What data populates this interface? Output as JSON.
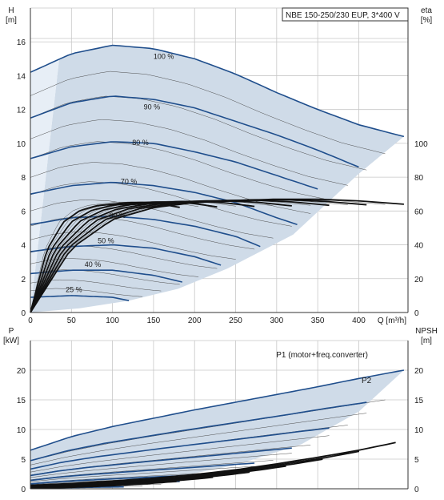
{
  "chart_data": [
    {
      "type": "line",
      "title": "NBE 150-250/230 EUP, 3*400 V",
      "xlabel": "Q [m³/h]",
      "ylabel_left": "H\n[m]",
      "ylabel_right": "eta\n[%]",
      "xlim": [
        0,
        460
      ],
      "ylim": [
        0,
        18
      ],
      "y2lim": [
        0,
        180
      ],
      "xticks": [
        "0",
        "50",
        "100",
        "150",
        "200",
        "250",
        "300",
        "350",
        "400"
      ],
      "yticks": [
        "0",
        "2",
        "4",
        "6",
        "8",
        "10",
        "12",
        "14",
        "16"
      ],
      "y2ticks": [
        "0",
        "20",
        "40",
        "60",
        "80",
        "100"
      ],
      "grid": true,
      "speed_labels": [
        "100 %",
        "90 %",
        "80 %",
        "70 %",
        "60 %",
        "50 %",
        "40 %",
        "25 %"
      ],
      "series": [
        {
          "name": "100 %",
          "speed": 1.0,
          "x": [
            0,
            50,
            100,
            150,
            200,
            250,
            300,
            350,
            400,
            455
          ],
          "values": [
            14.2,
            15.3,
            15.8,
            15.6,
            15.0,
            14.1,
            13.0,
            12.0,
            11.1,
            10.4
          ]
        },
        {
          "name": "90 %",
          "speed": 0.9,
          "x": [
            0,
            50,
            100,
            150,
            200,
            250,
            300,
            350,
            400
          ],
          "values": [
            11.5,
            12.4,
            12.8,
            12.6,
            12.1,
            11.3,
            10.5,
            9.6,
            8.6
          ]
        },
        {
          "name": "80 %",
          "speed": 0.8,
          "x": [
            0,
            50,
            100,
            150,
            200,
            250,
            300,
            350
          ],
          "values": [
            9.1,
            9.8,
            10.1,
            10.0,
            9.5,
            8.9,
            8.1,
            7.3
          ]
        },
        {
          "name": "70 %",
          "speed": 0.7,
          "x": [
            0,
            50,
            100,
            150,
            200,
            250,
            300,
            325
          ],
          "values": [
            7.0,
            7.5,
            7.7,
            7.5,
            7.1,
            6.5,
            5.6,
            5.2
          ]
        },
        {
          "name": "60 %",
          "speed": 0.6,
          "x": [
            0,
            50,
            100,
            150,
            200,
            250,
            280
          ],
          "values": [
            5.2,
            5.6,
            5.7,
            5.5,
            5.1,
            4.5,
            3.9
          ]
        },
        {
          "name": "50 %",
          "speed": 0.5,
          "x": [
            0,
            50,
            100,
            150,
            200,
            232
          ],
          "values": [
            3.6,
            3.9,
            4.0,
            3.8,
            3.3,
            2.8
          ]
        },
        {
          "name": "40 %",
          "speed": 0.4,
          "x": [
            0,
            50,
            100,
            150,
            185
          ],
          "values": [
            2.3,
            2.5,
            2.5,
            2.2,
            1.8
          ]
        },
        {
          "name": "25 %",
          "speed": 0.25,
          "x": [
            0,
            50,
            100,
            120
          ],
          "values": [
            0.9,
            1.0,
            0.9,
            0.7
          ]
        }
      ],
      "eta_curves_100pct": {
        "x": [
          0,
          50,
          100,
          150,
          200,
          250,
          300,
          350,
          400,
          455
        ],
        "values": [
          0,
          38,
          55,
          62,
          65,
          66,
          67,
          67,
          66,
          64
        ]
      }
    },
    {
      "type": "line",
      "xlabel": "",
      "ylabel_left": "P\n[kW]",
      "ylabel_right": "NPSH\n[m]",
      "xlim": [
        0,
        460
      ],
      "ylim": [
        0,
        25
      ],
      "y2lim": [
        0,
        25
      ],
      "yticks": [
        "0",
        "5",
        "10",
        "15",
        "20"
      ],
      "y2ticks": [
        "0",
        "5",
        "10",
        "15",
        "20"
      ],
      "grid": true,
      "series_labels": [
        "P1 (motor+freq.converter)",
        "P2"
      ],
      "series": [
        {
          "name": "P1 (motor+freq.converter)",
          "x": [
            0,
            50,
            100,
            150,
            200,
            250,
            300,
            350,
            400,
            455
          ],
          "values": [
            6.5,
            8.8,
            10.5,
            11.9,
            13.3,
            14.6,
            15.9,
            17.2,
            18.6,
            20.0
          ]
        },
        {
          "name": "P2",
          "x": [
            0,
            50,
            100,
            150,
            200,
            250,
            300,
            350,
            400,
            455
          ],
          "values": [
            5.5,
            7.4,
            8.9,
            10.2,
            11.4,
            12.6,
            13.8,
            15.0,
            16.2,
            17.5
          ]
        }
      ],
      "npsh_100pct": {
        "x": [
          0,
          50,
          100,
          150,
          200,
          250,
          300,
          350,
          400,
          445
        ],
        "values": [
          0.6,
          0.9,
          1.3,
          1.8,
          2.4,
          3.2,
          4.2,
          5.3,
          6.5,
          7.8
        ]
      }
    }
  ]
}
